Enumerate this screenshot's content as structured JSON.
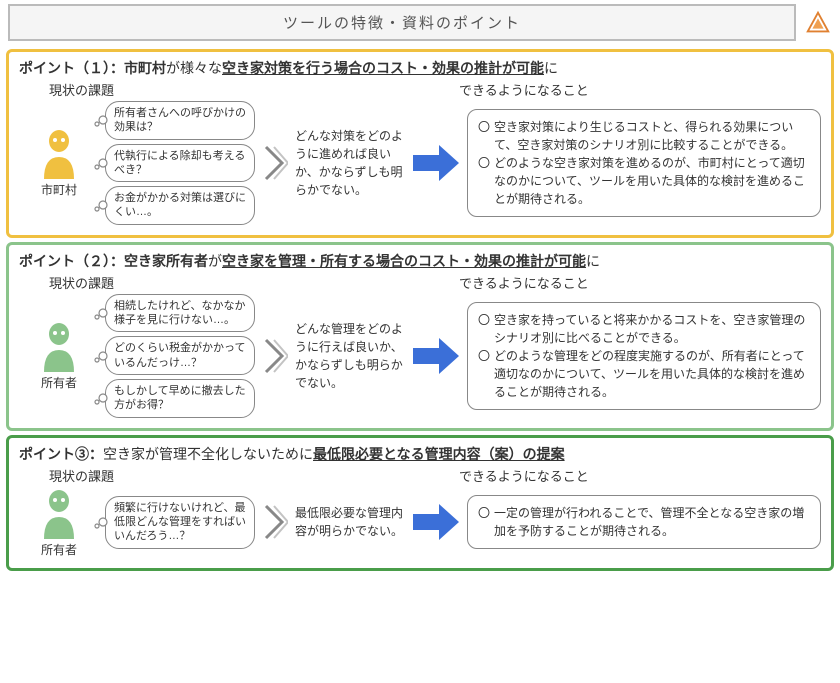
{
  "title": "ツールの特徴・資料のポイント",
  "logo": {
    "stroke": "#e08030",
    "fill": "#f0a050"
  },
  "chevron_color": "#888",
  "arrow_color": "#3b6fd8",
  "sections": [
    {
      "border": "#f0c040",
      "persona_color": "#f0c040",
      "pt_prefix": "ポイント（１）：",
      "pt_bold1": "市町村",
      "pt_norm": "が様々な",
      "pt_ul": "空き家対策を行う場合のコスト・効果の推計が可能",
      "pt_tail": "に",
      "left_label": "現状の課題",
      "right_label": "できるようになること",
      "persona_label": "市町村",
      "bubbles": [
        "所有者さんへの呼びかけの効果は？",
        "代執行による除却も考えるべき？",
        "お金がかかる対策は選びにくい…。"
      ],
      "mid": "どんな対策をどのように進めれば良いか、かならずしも明らかでない。",
      "results": [
        "空き家対策により生じるコストと、得られる効果について、空き家対策のシナリオ別に比較することができる。",
        "どのような空き家対策を進めるのが、市町村にとって適切なのかについて、ツールを用いた具体的な検討を進めることが期待される。"
      ]
    },
    {
      "border": "#8bc48b",
      "persona_color": "#8bc48b",
      "pt_prefix": "ポイント（２）：",
      "pt_bold1": "空き家所有者",
      "pt_norm": "が",
      "pt_ul": "空き家を管理・所有する場合のコスト・効果の推計が可能",
      "pt_tail": "に",
      "left_label": "現状の課題",
      "right_label": "できるようになること",
      "persona_label": "所有者",
      "bubbles": [
        "相続したけれど、なかなか様子を見に行けない…。",
        "どのくらい税金がかかっているんだっけ…？",
        "もしかして早めに撤去した方がお得？"
      ],
      "mid": "どんな管理をどのように行えば良いか、かならずしも明らかでない。",
      "results": [
        "空き家を持っていると将来かかるコストを、空き家管理のシナリオ別に比べることができる。",
        "どのような管理をどの程度実施するのが、所有者にとって適切なのかについて、ツールを用いた具体的な検討を進めることが期待される。"
      ]
    },
    {
      "border": "#4a9d4a",
      "persona_color": "#8bc48b",
      "pt_prefix": "ポイント③：",
      "pt_bold1": "",
      "pt_norm": "空き家が管理不全化しないために",
      "pt_ul": "最低限必要となる管理内容（案）の提案",
      "pt_tail": "",
      "left_label": "現状の課題",
      "right_label": "できるようになること",
      "persona_label": "所有者",
      "bubbles": [
        "頻繁に行けないけれど、最低限どんな管理をすればいいんだろう…？"
      ],
      "mid": "最低限必要な管理内容が明らかでない。",
      "results": [
        "一定の管理が行われることで、管理不全となる空き家の増加を予防することが期待される。"
      ]
    }
  ]
}
